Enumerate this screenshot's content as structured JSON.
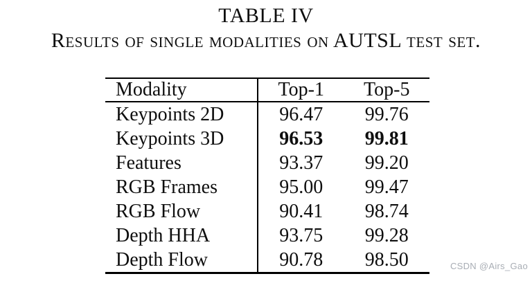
{
  "caption": {
    "title": "TABLE IV",
    "subtitle": "Results of single modalities on AUTSL test set."
  },
  "table": {
    "headers": [
      "Modality",
      "Top-1",
      "Top-5"
    ],
    "rows": [
      {
        "modality": "Keypoints 2D",
        "top1": "96.47",
        "top5": "99.76",
        "bold": false
      },
      {
        "modality": "Keypoints 3D",
        "top1": "96.53",
        "top5": "99.81",
        "bold": true
      },
      {
        "modality": "Features",
        "top1": "93.37",
        "top5": "99.20",
        "bold": false
      },
      {
        "modality": "RGB Frames",
        "top1": "95.00",
        "top5": "99.47",
        "bold": false
      },
      {
        "modality": "RGB Flow",
        "top1": "90.41",
        "top5": "98.74",
        "bold": false
      },
      {
        "modality": "Depth HHA",
        "top1": "93.75",
        "top5": "99.28",
        "bold": false
      },
      {
        "modality": "Depth Flow",
        "top1": "90.78",
        "top5": "98.50",
        "bold": false
      }
    ]
  },
  "watermark": {
    "text": "CSDN @Airs_Gao",
    "color": "#a8adb4"
  },
  "colors": {
    "text": "#0e0e0e",
    "background": "#ffffff",
    "rule": "#000000"
  }
}
